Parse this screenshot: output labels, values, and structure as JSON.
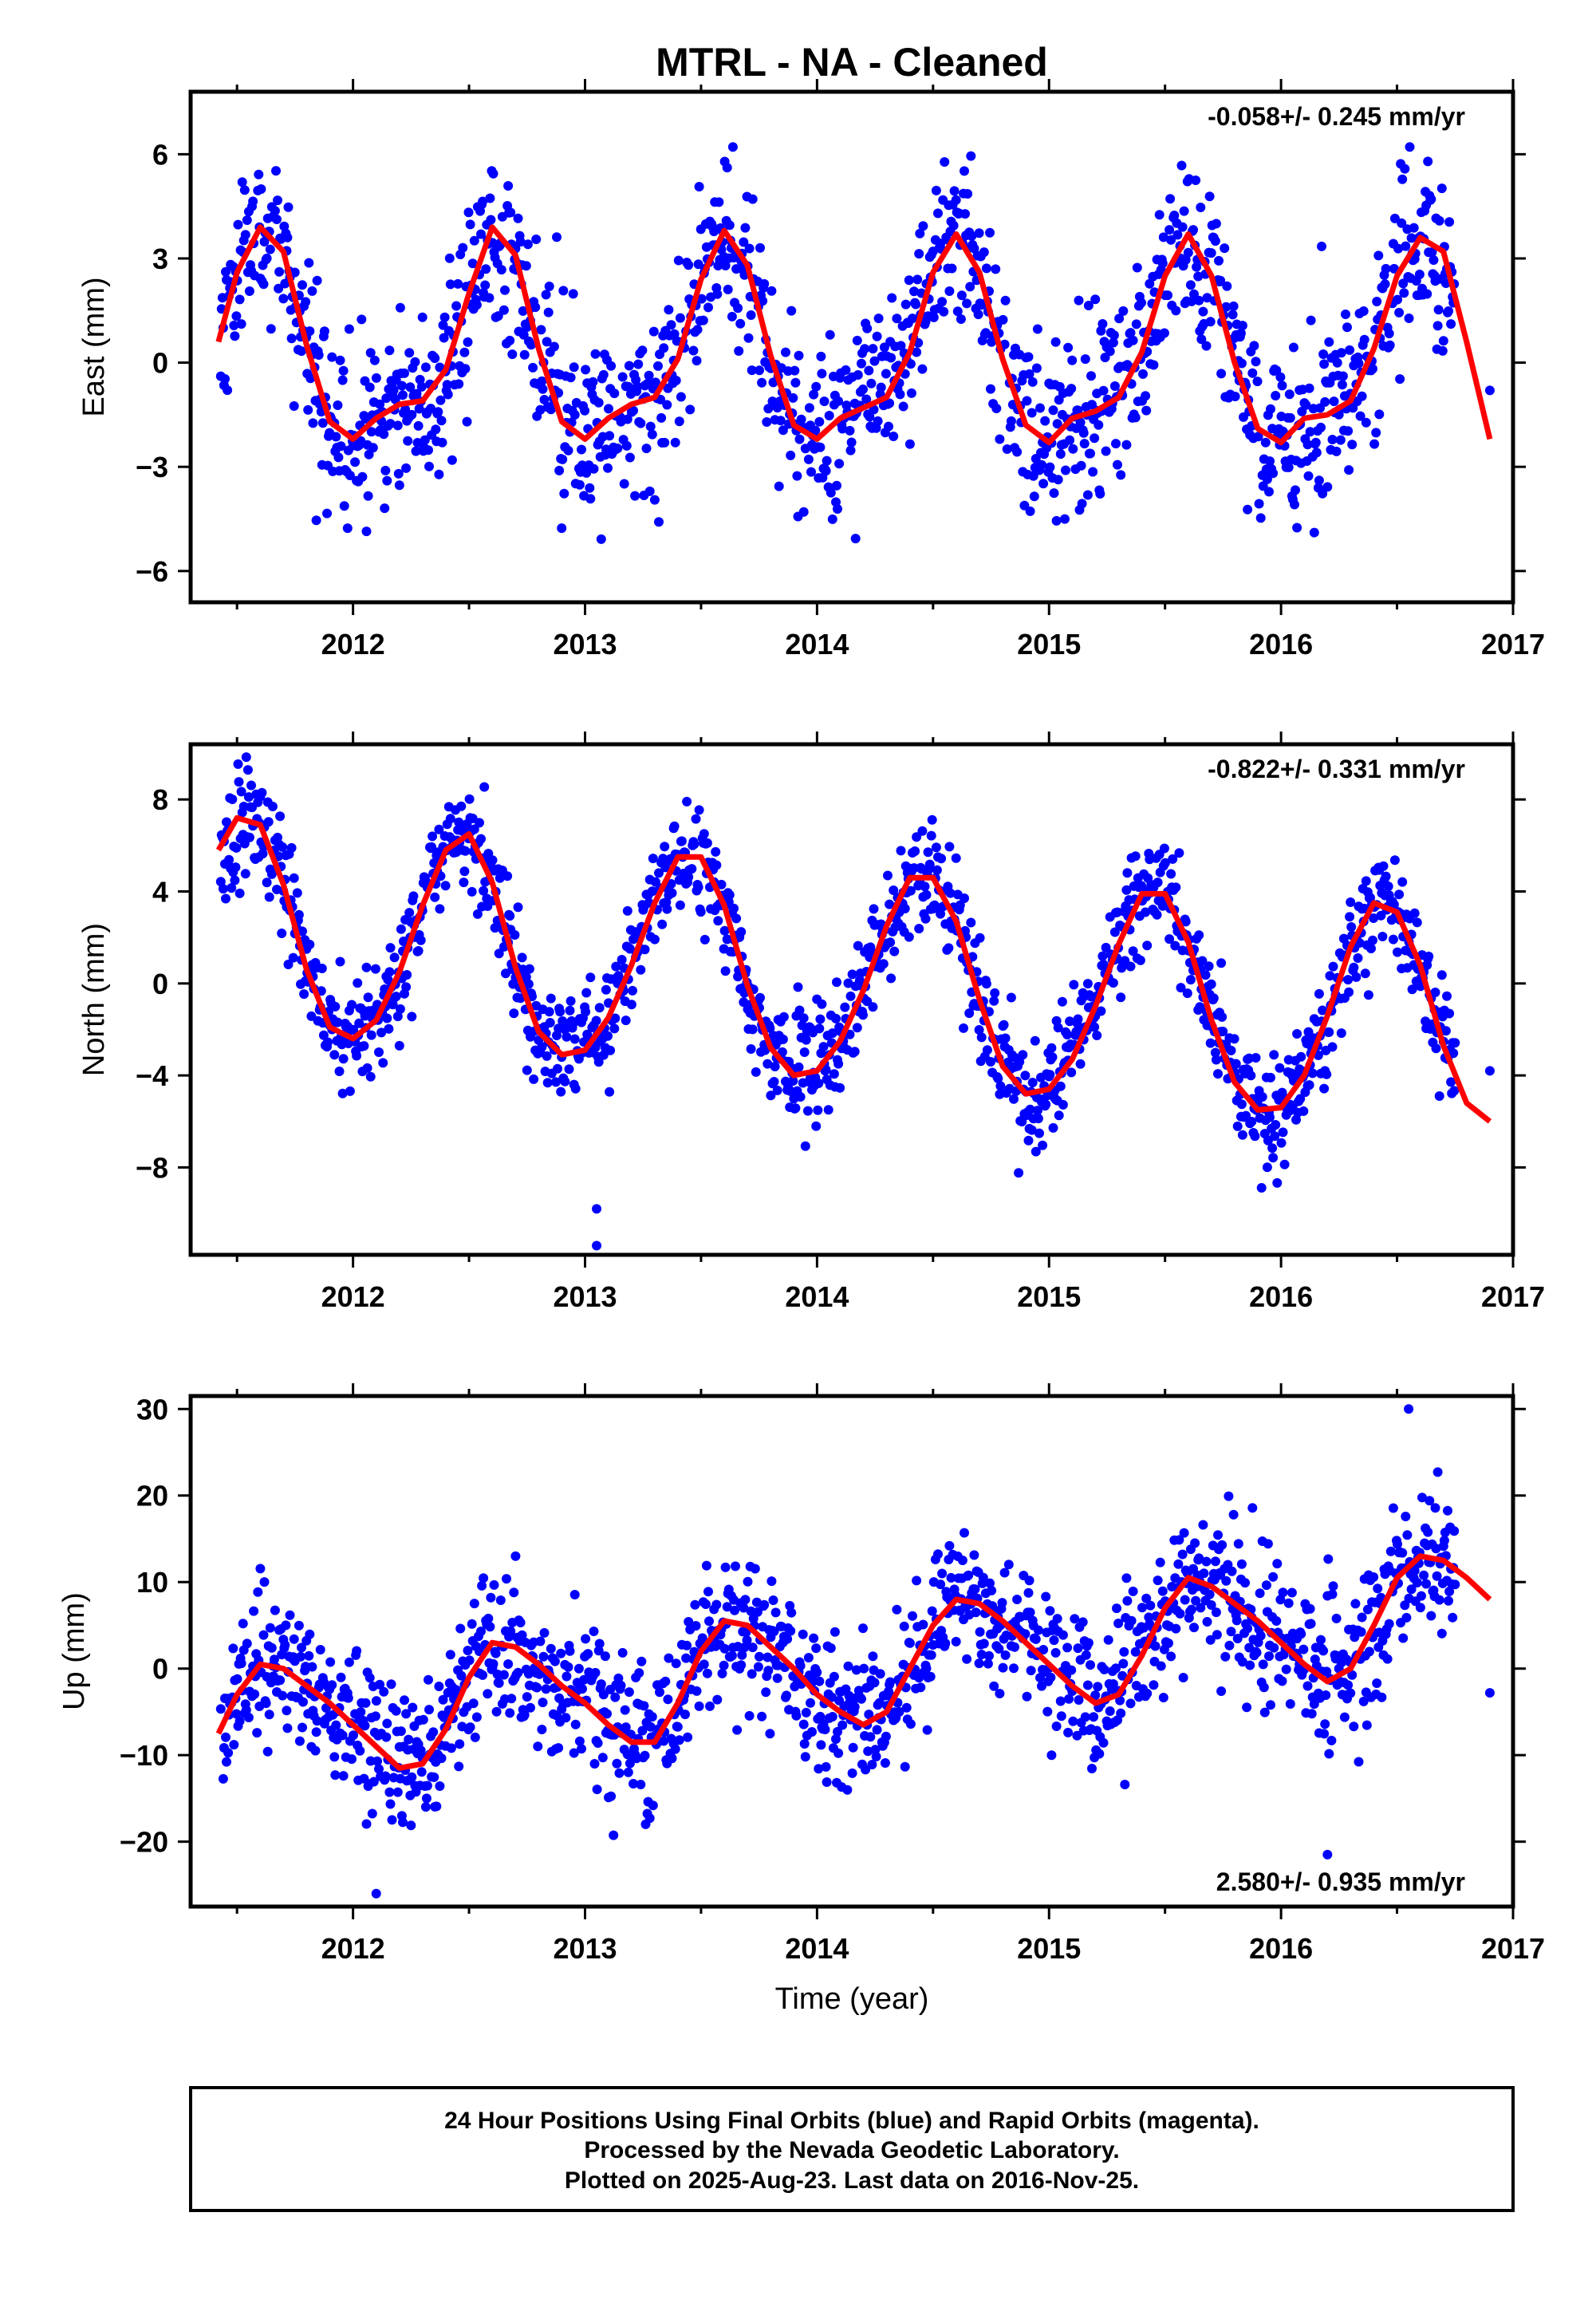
{
  "title": "MTRL  - NA - Cleaned",
  "xlabel": "Time (year)",
  "footer": {
    "line1": "24 Hour Positions Using Final Orbits (blue) and Rapid Orbits (magenta).",
    "line2": "Processed by the Nevada Geodetic Laboratory.",
    "line3": "Plotted on 2025-Aug-23. Last data on 2016-Nov-25."
  },
  "colors": {
    "points": "#0000ff",
    "model": "#ff0000",
    "frame": "#000000"
  },
  "chart_data": [
    {
      "type": "scatter",
      "ylabel": "East (mm)",
      "rate_label": "-0.058+/- 0.245 mm/yr",
      "rate_position": "top-right",
      "xlim": [
        2011.3,
        2017.0
      ],
      "ylim": [
        -6.9,
        7.8
      ],
      "x_ticks": [
        2012,
        2013,
        2014,
        2015,
        2016,
        2017
      ],
      "y_ticks": [
        -6,
        -3,
        0,
        3,
        6
      ],
      "grid": false,
      "model": {
        "name": "fit",
        "x": [
          2011.42,
          2011.5,
          2011.6,
          2011.7,
          2011.8,
          2011.9,
          2012.0,
          2012.1,
          2012.2,
          2012.3,
          2012.4,
          2012.5,
          2012.6,
          2012.7,
          2012.8,
          2012.9,
          2013.0,
          2013.1,
          2013.2,
          2013.3,
          2013.4,
          2013.5,
          2013.6,
          2013.7,
          2013.8,
          2013.9,
          2014.0,
          2014.1,
          2014.2,
          2014.3,
          2014.4,
          2014.5,
          2014.6,
          2014.7,
          2014.8,
          2014.9,
          2015.0,
          2015.1,
          2015.2,
          2015.3,
          2015.4,
          2015.5,
          2015.6,
          2015.7,
          2015.8,
          2015.9,
          2016.0,
          2016.1,
          2016.2,
          2016.3,
          2016.4,
          2016.5,
          2016.6,
          2016.7,
          2016.8,
          2016.9
        ],
        "y": [
          0.6,
          2.6,
          3.9,
          3.2,
          0.5,
          -1.7,
          -2.2,
          -1.6,
          -1.2,
          -1.1,
          -0.2,
          2.0,
          3.9,
          3.1,
          0.4,
          -1.7,
          -2.2,
          -1.6,
          -1.2,
          -1.0,
          0.1,
          2.4,
          3.8,
          2.8,
          0.2,
          -1.8,
          -2.2,
          -1.6,
          -1.3,
          -1.0,
          0.3,
          2.6,
          3.7,
          2.6,
          0.1,
          -1.8,
          -2.3,
          -1.6,
          -1.4,
          -1.0,
          0.3,
          2.5,
          3.7,
          2.5,
          0.0,
          -1.9,
          -2.3,
          -1.6,
          -1.5,
          -1.1,
          0.4,
          2.5,
          3.6,
          3.2,
          0.6,
          -2.2
        ]
      },
      "points": {
        "name": "24h positions",
        "seed": 11,
        "x_start": 2011.43,
        "x_end": 2016.75,
        "count": 1500,
        "scatter_sd": 1.3,
        "extra": [
          [
            2016.9,
            -0.8
          ]
        ]
      }
    },
    {
      "type": "scatter",
      "ylabel": "North (mm)",
      "rate_label": "-0.822+/- 0.331 mm/yr",
      "rate_position": "top-right",
      "xlim": [
        2011.3,
        2017.0
      ],
      "ylim": [
        -11.8,
        10.4
      ],
      "x_ticks": [
        2012,
        2013,
        2014,
        2015,
        2016,
        2017
      ],
      "y_ticks": [
        -8,
        -4,
        0,
        4,
        8
      ],
      "grid": false,
      "model": {
        "name": "fit",
        "x": [
          2011.42,
          2011.5,
          2011.6,
          2011.7,
          2011.8,
          2011.9,
          2012.0,
          2012.1,
          2012.2,
          2012.3,
          2012.4,
          2012.5,
          2012.6,
          2012.7,
          2012.8,
          2012.9,
          2013.0,
          2013.1,
          2013.2,
          2013.3,
          2013.4,
          2013.5,
          2013.6,
          2013.7,
          2013.8,
          2013.9,
          2014.0,
          2014.1,
          2014.2,
          2014.3,
          2014.4,
          2014.5,
          2014.6,
          2014.7,
          2014.8,
          2014.9,
          2015.0,
          2015.1,
          2015.2,
          2015.3,
          2015.4,
          2015.5,
          2015.6,
          2015.7,
          2015.8,
          2015.9,
          2016.0,
          2016.1,
          2016.2,
          2016.3,
          2016.4,
          2016.5,
          2016.6,
          2016.7,
          2016.8,
          2016.9
        ],
        "y": [
          5.8,
          7.2,
          6.9,
          4.3,
          0.6,
          -1.9,
          -2.4,
          -1.6,
          0.5,
          3.4,
          5.8,
          6.5,
          4.4,
          0.7,
          -2.1,
          -3.1,
          -2.9,
          -1.5,
          0.8,
          3.5,
          5.5,
          5.5,
          3.4,
          -0.1,
          -2.8,
          -4.0,
          -3.8,
          -2.5,
          -0.3,
          2.5,
          4.6,
          4.6,
          2.7,
          -0.7,
          -3.6,
          -4.8,
          -4.6,
          -3.3,
          -1.0,
          1.7,
          3.9,
          3.9,
          1.8,
          -1.6,
          -4.3,
          -5.5,
          -5.4,
          -4.0,
          -1.4,
          1.6,
          3.5,
          3.1,
          0.8,
          -2.7,
          -5.2,
          -6.0
        ]
      },
      "points": {
        "name": "24h positions",
        "seed": 23,
        "x_start": 2011.43,
        "x_end": 2016.75,
        "count": 1500,
        "scatter_sd": 1.2,
        "extra": [
          [
            2016.9,
            -3.8
          ],
          [
            2013.05,
            -11.4
          ],
          [
            2013.05,
            -9.8
          ]
        ]
      }
    },
    {
      "type": "scatter",
      "ylabel": "Up (mm)",
      "rate_label": "2.580+/- 0.935 mm/yr",
      "rate_position": "bottom-right",
      "xlim": [
        2011.3,
        2017.0
      ],
      "ylim": [
        -27.5,
        31.5
      ],
      "x_ticks": [
        2012,
        2013,
        2014,
        2015,
        2016,
        2017
      ],
      "y_ticks": [
        -20,
        -10,
        0,
        10,
        20,
        30
      ],
      "grid": false,
      "model": {
        "name": "fit",
        "x": [
          2011.42,
          2011.5,
          2011.6,
          2011.7,
          2011.8,
          2011.9,
          2012.0,
          2012.1,
          2012.2,
          2012.3,
          2012.4,
          2012.5,
          2012.6,
          2012.7,
          2012.8,
          2012.9,
          2013.0,
          2013.1,
          2013.2,
          2013.3,
          2013.4,
          2013.5,
          2013.6,
          2013.7,
          2013.8,
          2013.9,
          2014.0,
          2014.1,
          2014.2,
          2014.3,
          2014.4,
          2014.5,
          2014.6,
          2014.7,
          2014.8,
          2014.9,
          2015.0,
          2015.1,
          2015.2,
          2015.3,
          2015.4,
          2015.5,
          2015.6,
          2015.7,
          2015.8,
          2015.9,
          2016.0,
          2016.1,
          2016.2,
          2016.3,
          2016.4,
          2016.5,
          2016.6,
          2016.7,
          2016.8,
          2016.9
        ],
        "y": [
          -7.5,
          -3.0,
          0.5,
          0.0,
          -2.0,
          -4.0,
          -6.5,
          -9.0,
          -11.5,
          -11.0,
          -7.0,
          -1.0,
          3.0,
          2.5,
          0.5,
          -2.0,
          -4.0,
          -6.5,
          -8.5,
          -8.5,
          -4.0,
          2.0,
          5.5,
          5.0,
          2.5,
          0.0,
          -3.0,
          -5.0,
          -6.5,
          -5.0,
          0.0,
          5.0,
          8.0,
          7.5,
          5.5,
          3.0,
          0.5,
          -2.0,
          -4.0,
          -3.0,
          1.5,
          7.0,
          10.5,
          9.5,
          7.5,
          5.5,
          3.0,
          0.5,
          -1.5,
          0.0,
          5.0,
          10.5,
          13.0,
          12.5,
          10.5,
          8.0
        ]
      },
      "points": {
        "name": "24h positions",
        "seed": 37,
        "x_start": 2011.43,
        "x_end": 2016.75,
        "count": 1500,
        "scatter_sd": 4.2,
        "extra": [
          [
            2016.9,
            -2.8
          ],
          [
            2016.55,
            30.0
          ],
          [
            2016.2,
            -21.5
          ],
          [
            2012.1,
            -26.0
          ]
        ]
      }
    }
  ]
}
